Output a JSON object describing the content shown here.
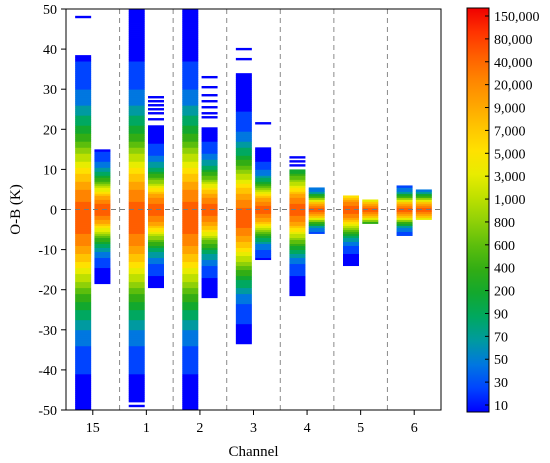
{
  "chart_data": {
    "type": "heatmap",
    "xlabel": "Channel",
    "ylabel": "O-B (K)",
    "ylim": [
      -50,
      50
    ],
    "yticks": [
      -50,
      -40,
      -30,
      -20,
      -10,
      0,
      10,
      20,
      30,
      40,
      50
    ],
    "reference_line_y": 0,
    "grid": false,
    "categories": [
      "15",
      "1",
      "2",
      "3",
      "4",
      "5",
      "6"
    ],
    "series": [
      {
        "category": "15",
        "histogram": "left",
        "y_range": [
          -50,
          38.5
        ],
        "outlier_y": [
          48
        ]
      },
      {
        "category": "15",
        "histogram": "right",
        "y_range": [
          -18.5,
          15
        ],
        "outlier_y": []
      },
      {
        "category": "1",
        "histogram": "left",
        "y_range": [
          -48,
          50
        ],
        "outlier_y": [
          -49
        ]
      },
      {
        "category": "1",
        "histogram": "right",
        "y_range": [
          -19.5,
          21
        ],
        "outlier_y": [
          22.5,
          24,
          25,
          26,
          27,
          28
        ]
      },
      {
        "category": "2",
        "histogram": "left",
        "y_range": [
          -50,
          50
        ],
        "outlier_y": []
      },
      {
        "category": "2",
        "histogram": "right",
        "y_range": [
          -22,
          20.5
        ],
        "outlier_y": [
          23,
          24,
          25.5,
          27,
          28.5,
          30.5,
          33
        ]
      },
      {
        "category": "3",
        "histogram": "left",
        "y_range": [
          -33.5,
          34
        ],
        "outlier_y": [
          37.5,
          40
        ]
      },
      {
        "category": "3",
        "histogram": "right",
        "y_range": [
          -12.5,
          15.5
        ],
        "outlier_y": [
          21.5
        ]
      },
      {
        "category": "4",
        "histogram": "left",
        "y_range": [
          -21.5,
          10
        ],
        "outlier_y": [
          11,
          12,
          13
        ]
      },
      {
        "category": "4",
        "histogram": "right",
        "y_range": [
          -6,
          5.5
        ],
        "outlier_y": []
      },
      {
        "category": "5",
        "histogram": "left",
        "y_range": [
          -14,
          3.5
        ],
        "outlier_y": []
      },
      {
        "category": "5",
        "histogram": "right",
        "y_range": [
          -3.5,
          2.5
        ],
        "outlier_y": []
      },
      {
        "category": "6",
        "histogram": "left",
        "y_range": [
          -6.5,
          6
        ],
        "outlier_y": []
      },
      {
        "category": "6",
        "histogram": "right",
        "y_range": [
          -2.5,
          5
        ],
        "outlier_y": []
      }
    ],
    "colorbar": {
      "labels": [
        "10",
        "30",
        "50",
        "70",
        "90",
        "200",
        "400",
        "600",
        "800",
        "1,000",
        "3,000",
        "5,000",
        "7,000",
        "9,000",
        "20,000",
        "40,000",
        "80,000",
        "150,000"
      ],
      "colors": [
        "#0000ff",
        "#0044ff",
        "#0077e0",
        "#009aa0",
        "#00a860",
        "#12a82e",
        "#32ad14",
        "#5cbe0c",
        "#8ed008",
        "#bde000",
        "#e8ec00",
        "#ffe100",
        "#ffc400",
        "#ffa300",
        "#ff8400",
        "#ff5e00",
        "#ff3200",
        "#f00000"
      ]
    }
  }
}
